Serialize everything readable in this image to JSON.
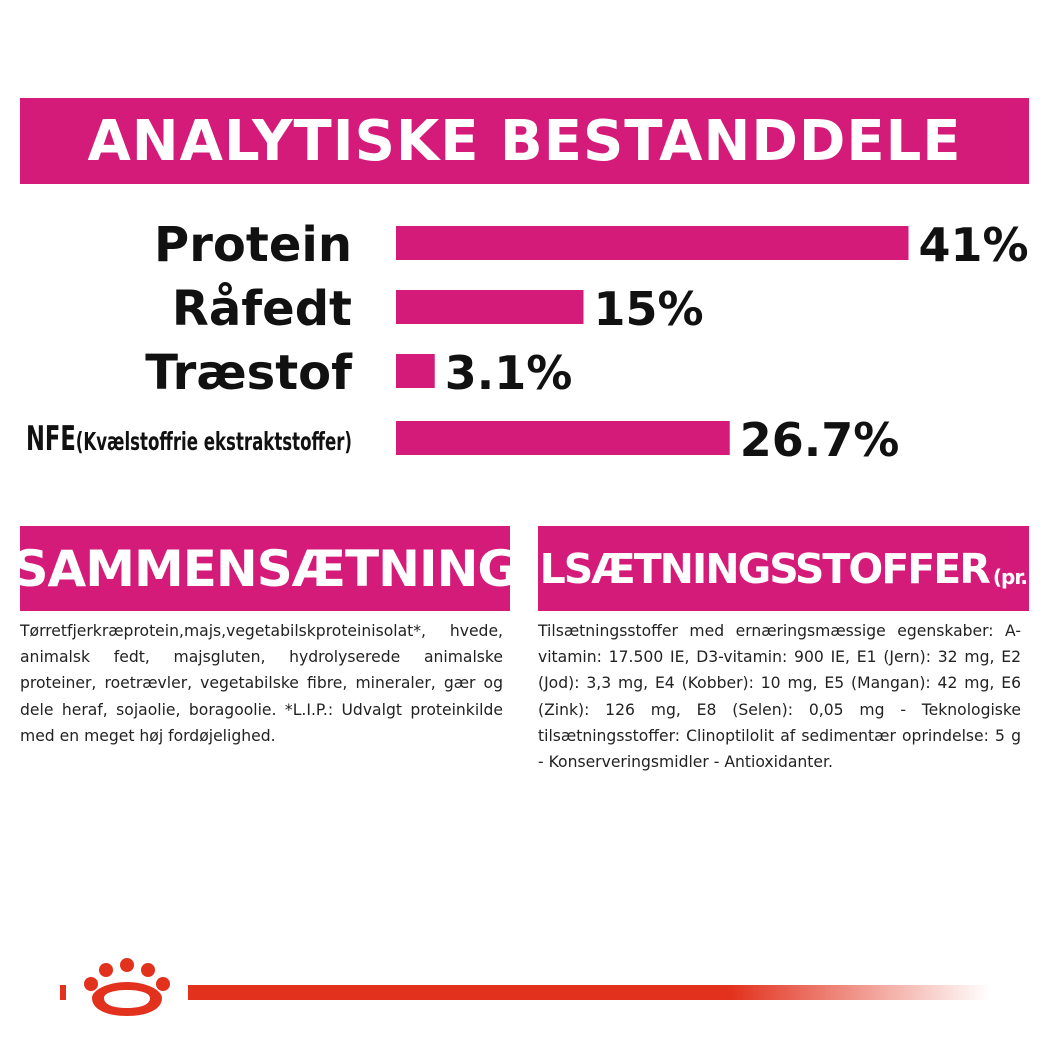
{
  "header": {
    "title": "ANALYTISKE BESTANDDELE"
  },
  "chart_data": {
    "type": "bar",
    "orientation": "horizontal",
    "categories": [
      "Protein",
      "Råfedt",
      "Træstof",
      "NFE"
    ],
    "category_notes": [
      "",
      "",
      "",
      "(Kvælstoffrie ekstraktstoffer)"
    ],
    "values": [
      41,
      15,
      3.1,
      26.7
    ],
    "value_labels": [
      "41%",
      "15%",
      "3.1%",
      "26.7%"
    ],
    "unit": "%",
    "bar_color": "#d51b7a",
    "title": "ANALYTISKE BESTANDDELE"
  },
  "composition": {
    "heading": "SAMMENSÆTNING",
    "text": "Tørretfjerkræprotein,majs,vegetabilskproteinisolat*, hvede, animalsk fedt, majsgluten, hydrolyserede animalske proteiner, roetrævler, vegetabilske fibre, mineraler, gær og dele heraf, sojaolie, boragoolie. *L.I.P.: Udvalgt proteinkilde med en meget høj fordøjelighed."
  },
  "additives": {
    "heading": "TILSÆTNINGSSTOFFER",
    "heading_suffix": "(pr. kg)",
    "text": "Tilsætningsstoffer med ernæringsmæssige egenskaber: A-vitamin: 17.500 IE, D3-vitamin: 900 IE, E1 (Jern): 32 mg, E2 (Jod): 3,3 mg, E4 (Kobber): 10 mg, E5 (Mangan): 42 mg, E6 (Zink): 126 mg, E8 (Selen): 0,05 mg - Teknologiske tilsætningsstoffer: Clinoptilolit af sedimentær oprindelse: 5 g - Konserveringsmidler - Antioxidanter."
  },
  "colors": {
    "accent": "#d51b7a",
    "brand_red": "#e2311d"
  },
  "footer": {
    "logo_icon": "royal-canin-crown-icon"
  }
}
